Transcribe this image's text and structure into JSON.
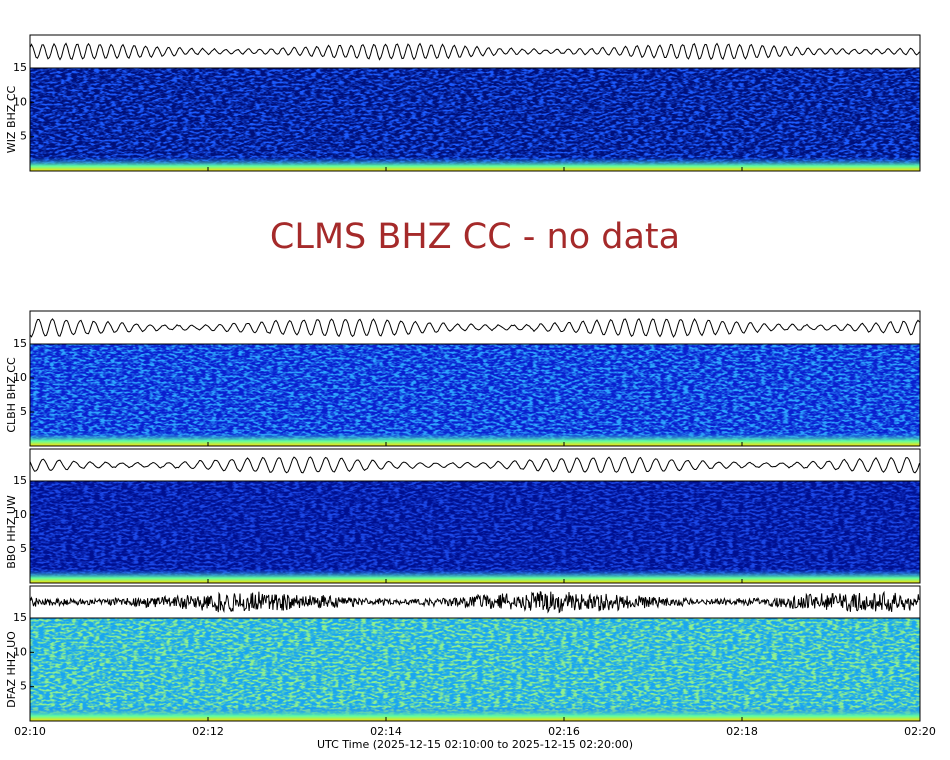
{
  "chart_data": {
    "type": "spectrogram",
    "x_label": "UTC Time (2025-12-15 02:10:00 to 2025-12-15 02:20:00)",
    "xticks": [
      "02:10",
      "02:12",
      "02:14",
      "02:16",
      "02:18",
      "02:20"
    ],
    "no_data_message": "CLMS BHZ CC - no data",
    "panels": [
      {
        "label": "WIZ BHZ CC",
        "ylim": [
          0,
          15
        ],
        "yticks": [
          5,
          10,
          15
        ],
        "colors": [
          "#00107a",
          "#1c5cff"
        ]
      },
      {
        "label": "CLBH BHZ CC",
        "ylim": [
          0,
          15
        ],
        "yticks": [
          5,
          10,
          15
        ],
        "colors": [
          "#0a1fcf",
          "#2fa6ff"
        ]
      },
      {
        "label": "BBO HHZ UW",
        "ylim": [
          0,
          15
        ],
        "yticks": [
          5,
          10,
          15
        ],
        "colors": [
          "#001090",
          "#1b48e8"
        ]
      },
      {
        "label": "DFAZ HHZ UO",
        "ylim": [
          0,
          15
        ],
        "yticks": [
          5,
          10,
          15
        ],
        "colors": [
          "#1aa6f0",
          "#8ef090"
        ]
      }
    ]
  }
}
